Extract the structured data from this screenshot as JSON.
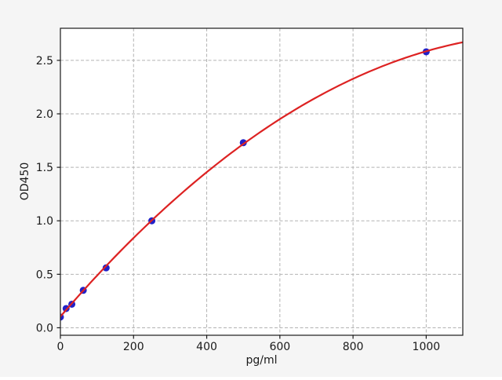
{
  "chart_data": {
    "type": "scatter",
    "title": "",
    "xlabel": "pg/ml",
    "ylabel": "OD450",
    "xlim": [
      0,
      1100
    ],
    "ylim": [
      -0.07,
      2.8
    ],
    "xticks": {
      "values": [
        0,
        200,
        400,
        600,
        800,
        1000
      ],
      "labels": [
        "0",
        "200",
        "400",
        "600",
        "800",
        "1000"
      ]
    },
    "yticks": {
      "values": [
        0.0,
        0.5,
        1.0,
        1.5,
        2.0,
        2.5
      ],
      "labels": [
        "0.0",
        "0.5",
        "1.0",
        "1.5",
        "2.0",
        "2.5"
      ]
    },
    "grid": true,
    "grid_style": "dashed",
    "legend": "none",
    "series": [
      {
        "name": "standard-points",
        "type": "scatter",
        "marker": "circle",
        "marker_size": 9,
        "color": "#2121c8",
        "x": [
          0,
          15.6,
          31.25,
          62.5,
          125,
          250,
          500,
          1000
        ],
        "y": [
          0.1,
          0.18,
          0.22,
          0.35,
          0.56,
          1.0,
          1.73,
          2.58
        ]
      },
      {
        "name": "fit-curve",
        "type": "line",
        "model": "quadratic",
        "coefficients": [
          0.105,
          0.00397,
          -1.49e-06
        ],
        "x_range": [
          0,
          1100
        ],
        "line_width": 2.2,
        "color": "#dd2222"
      }
    ],
    "colors": {
      "figure_bg": "#f5f5f5",
      "plot_bg": "#ffffff",
      "grid": "#b3b3b3",
      "spine": "#1a1a1a",
      "tick": "#1a1a1a",
      "tick_label": "#1a1a1a"
    }
  }
}
